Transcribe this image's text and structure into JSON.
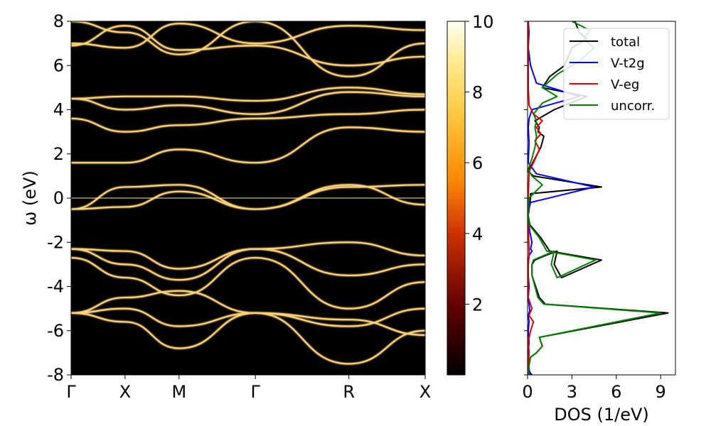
{
  "chart_data": [
    {
      "type": "heatmap",
      "title": "",
      "ylabel": "ω (eV)",
      "xlabel": "",
      "ylim": [
        -8,
        8
      ],
      "ytick_labels": [
        "8",
        "6",
        "4",
        "2",
        "0",
        "-2",
        "-4",
        "-6",
        "-8"
      ],
      "yticks": [
        8,
        6,
        4,
        2,
        0,
        -2,
        -4,
        -6,
        -8
      ],
      "kpath_labels": [
        "Γ",
        "X",
        "M",
        "Γ",
        "R",
        "X"
      ],
      "kpath_positions": [
        0,
        0.5,
        1.0,
        1.707,
        2.573,
        3.28
      ],
      "background_color": "#000000",
      "band_color": "#ffd27a",
      "fermi_level": 0,
      "bands": [
        [
          -5.2,
          -5.6,
          -6.8,
          -5.2,
          -7.5,
          -6.0
        ],
        [
          -5.2,
          -5.0,
          -5.8,
          -5.2,
          -5.8,
          -5.0
        ],
        [
          -5.2,
          -4.5,
          -4.2,
          -5.2,
          -5.5,
          -6.2
        ],
        [
          -2.7,
          -3.6,
          -4.4,
          -2.7,
          -5.0,
          -3.8
        ],
        [
          -2.3,
          -3.0,
          -3.7,
          -2.3,
          -3.5,
          -3.0
        ],
        [
          -2.3,
          -2.4,
          -3.2,
          -2.3,
          -2.0,
          -2.6
        ],
        [
          -0.5,
          0.5,
          0.6,
          -0.5,
          0.5,
          0.6
        ],
        [
          -0.5,
          -0.4,
          0.3,
          -0.5,
          0.6,
          -0.3
        ],
        [
          1.6,
          1.6,
          2.2,
          1.6,
          3.2,
          3.0
        ],
        [
          3.6,
          3.0,
          3.3,
          3.6,
          3.8,
          4.0
        ],
        [
          4.5,
          4.0,
          4.2,
          3.8,
          4.8,
          4.6
        ],
        [
          4.5,
          4.6,
          4.6,
          4.4,
          5.0,
          4.7
        ],
        [
          6.9,
          7.8,
          6.7,
          6.9,
          6.0,
          6.4
        ],
        [
          7.0,
          6.8,
          7.9,
          7.0,
          7.8,
          7.6
        ],
        [
          8.0,
          7.5,
          6.5,
          8.0,
          5.5,
          7.0
        ]
      ],
      "colorbar": {
        "min": 0,
        "max": 10,
        "tick_labels": [
          "2",
          "4",
          "6",
          "8",
          "10"
        ],
        "ticks": [
          2,
          4,
          6,
          8,
          10
        ],
        "colormap": "afmhot"
      }
    },
    {
      "type": "line",
      "xlabel": "DOS (1/eV)",
      "ylabel": "",
      "xlim": [
        0,
        10
      ],
      "ylim": [
        -8,
        8
      ],
      "xtick_labels": [
        "0",
        "3",
        "6",
        "9"
      ],
      "xticks": [
        0,
        3,
        6,
        9
      ],
      "legend_position": "top-right",
      "series": [
        {
          "name": "total",
          "color": "#000000",
          "x": [
            0.3,
            0.05,
            0.05,
            0.2,
            0.6,
            1.0,
            0.8,
            9.5,
            1.2,
            0.8,
            0.3,
            0.3,
            0.5,
            1.2,
            2.0,
            1.8,
            2.3,
            5.0,
            1.5,
            0.9,
            0.15,
            0.05,
            0.1,
            0.2,
            0.2,
            5.0,
            0.4,
            0.05,
            0.5,
            0.9,
            1.1,
            0.7,
            0.8,
            0.5,
            1.8,
            4.0,
            1.0,
            1.5,
            2.5,
            3.0,
            4.0,
            3.5,
            3.2
          ],
          "y": [
            -8.0,
            -7.8,
            -7.5,
            -7.2,
            -7.0,
            -6.7,
            -6.3,
            -5.2,
            -4.8,
            -4.5,
            -3.5,
            -3.0,
            -2.8,
            -2.6,
            -2.4,
            -3.0,
            -3.6,
            -2.8,
            -2.4,
            -1.8,
            -1.2,
            -0.8,
            -0.5,
            0.0,
            0.2,
            0.5,
            1.0,
            1.2,
            1.8,
            2.3,
            2.8,
            3.0,
            3.2,
            3.5,
            4.0,
            4.6,
            5.0,
            5.5,
            6.0,
            6.8,
            7.2,
            7.5,
            8.0
          ]
        },
        {
          "name": "V-t2g",
          "color": "#0000ff",
          "x": [
            0.2,
            0.05,
            0.05,
            0.1,
            0.05,
            0.1,
            0.05,
            0.15,
            0.05,
            0.1,
            0.05,
            0.05,
            0.1,
            0.3,
            0.2,
            0.3,
            0.15,
            0.05,
            0.05,
            0.2,
            4.5,
            0.6,
            0.05,
            0.1,
            0.05,
            0.1,
            0.3,
            3.5,
            0.6,
            0.2,
            0.05,
            0.1,
            0.05
          ],
          "y": [
            -8.0,
            -7.6,
            -7.0,
            -6.5,
            -6.0,
            -5.6,
            -5.3,
            -5.1,
            -4.5,
            -4.0,
            -3.5,
            -3.0,
            -2.6,
            -2.4,
            -2.3,
            -2.0,
            -1.5,
            -1.0,
            -0.6,
            -0.2,
            0.5,
            1.1,
            1.6,
            2.5,
            3.2,
            3.6,
            4.0,
            4.6,
            5.2,
            6.0,
            6.8,
            7.5,
            8.0
          ]
        },
        {
          "name": "V-eg",
          "color": "#e00000",
          "x": [
            0.1,
            0.05,
            0.1,
            0.05,
            0.2,
            0.4,
            0.1,
            0.3,
            0.05,
            0.05,
            0.1,
            0.05,
            0.05,
            0.1,
            0.4,
            0.8,
            0.5,
            0.9,
            0.6,
            1.0,
            0.4,
            0.1,
            0.05,
            0.05
          ],
          "y": [
            -8.0,
            -7.6,
            -7.0,
            -6.5,
            -6.0,
            -5.6,
            -5.3,
            -5.0,
            -4.5,
            -3.0,
            -2.5,
            -1.0,
            0.0,
            1.2,
            1.6,
            2.2,
            2.6,
            2.9,
            3.2,
            3.5,
            3.8,
            4.2,
            5.0,
            8.0
          ]
        },
        {
          "name": "uncorr.",
          "color": "#008000",
          "x": [
            0.05,
            0.1,
            0.2,
            0.6,
            1.0,
            0.8,
            9.0,
            1.1,
            0.7,
            0.3,
            0.3,
            0.4,
            1.1,
            1.8,
            1.6,
            2.0,
            4.6,
            1.3,
            0.8,
            0.1,
            0.05,
            0.05,
            0.1,
            1.0,
            0.3,
            0.05,
            0.3,
            0.5,
            0.6,
            0.5,
            0.6,
            0.4,
            1.0,
            2.0,
            1.0,
            2.0,
            3.5,
            4.5,
            3.8,
            4.2,
            3.0
          ],
          "y": [
            -8.0,
            -7.6,
            -7.2,
            -7.0,
            -6.7,
            -6.3,
            -5.2,
            -4.8,
            -4.5,
            -3.5,
            -3.0,
            -2.8,
            -2.6,
            -2.4,
            -3.0,
            -3.6,
            -2.8,
            -2.4,
            -1.8,
            -1.2,
            -0.8,
            -0.5,
            0.0,
            0.6,
            1.0,
            1.3,
            1.8,
            2.3,
            2.8,
            3.2,
            3.5,
            3.8,
            4.3,
            4.6,
            5.0,
            5.6,
            6.2,
            6.8,
            7.2,
            7.6,
            8.0
          ]
        }
      ]
    }
  ]
}
